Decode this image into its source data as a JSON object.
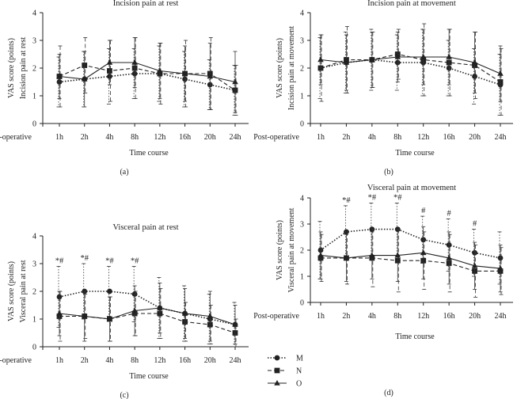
{
  "legend": {
    "entries": [
      {
        "key": "M",
        "label": "M",
        "marker": "circle",
        "dash": "dotted"
      },
      {
        "key": "N",
        "label": "N",
        "marker": "square",
        "dash": "dashed"
      },
      {
        "key": "O",
        "label": "O",
        "marker": "triangle",
        "dash": "solid"
      }
    ]
  },
  "chart_data": [
    {
      "type": "line",
      "panel": "(a)",
      "title": "Incision pain at rest",
      "ylabel": "VAS score (points)",
      "ylabel2": "Incision pain at rest",
      "xlabel": "Time course",
      "x_title_tick": "Post-operative",
      "categories": [
        "1h",
        "2h",
        "4h",
        "8h",
        "12h",
        "16h",
        "20h",
        "24h"
      ],
      "ylim": [
        0,
        4
      ],
      "yticks": [
        0,
        1,
        2,
        3,
        4
      ],
      "series": [
        {
          "name": "M",
          "values": [
            1.5,
            1.6,
            1.7,
            1.8,
            1.8,
            1.6,
            1.4,
            1.2
          ],
          "err": [
            0.9,
            1.0,
            1.0,
            0.9,
            1.0,
            1.0,
            0.9,
            0.9
          ]
        },
        {
          "name": "N",
          "values": [
            1.7,
            2.1,
            1.9,
            2.0,
            1.8,
            1.8,
            1.8,
            1.2
          ],
          "err": [
            1.1,
            1.0,
            1.1,
            1.1,
            1.1,
            1.2,
            1.3,
            0.9
          ]
        },
        {
          "name": "O",
          "values": [
            1.7,
            1.6,
            2.2,
            2.2,
            1.9,
            1.8,
            1.7,
            1.5
          ],
          "err": [
            0.8,
            1.0,
            0.8,
            0.9,
            1.0,
            1.0,
            1.2,
            1.1
          ]
        }
      ],
      "annotations": []
    },
    {
      "type": "line",
      "panel": "(b)",
      "title": "Incision pain at movement",
      "ylabel": "VAS score (points)",
      "ylabel2": "Incision pain at movement",
      "xlabel": "Time course",
      "x_title_tick": "Post-operative",
      "categories": [
        "1h",
        "2h",
        "4h",
        "8h",
        "12h",
        "16h",
        "20h",
        "24h"
      ],
      "ylim": [
        0,
        4
      ],
      "yticks": [
        0,
        1,
        2,
        3,
        4
      ],
      "series": [
        {
          "name": "M",
          "values": [
            2.0,
            2.2,
            2.3,
            2.2,
            2.2,
            2.0,
            1.7,
            1.4
          ],
          "err": [
            1.1,
            1.1,
            1.1,
            1.0,
            1.2,
            1.0,
            1.0,
            1.1
          ]
        },
        {
          "name": "N",
          "values": [
            2.0,
            2.3,
            2.3,
            2.5,
            2.3,
            2.2,
            2.1,
            1.5
          ],
          "err": [
            1.2,
            1.2,
            1.0,
            0.9,
            1.3,
            1.2,
            1.2,
            1.2
          ]
        },
        {
          "name": "O",
          "values": [
            2.3,
            2.2,
            2.3,
            2.4,
            2.4,
            2.4,
            2.2,
            1.8
          ],
          "err": [
            0.9,
            1.0,
            1.0,
            0.9,
            1.0,
            1.0,
            1.1,
            1.0
          ]
        }
      ],
      "annotations": []
    },
    {
      "type": "line",
      "panel": "(c)",
      "title": "Visceral pain at rest",
      "ylabel": "VAS score (points)",
      "ylabel2": "Visceral pain at rest",
      "xlabel": "Time course",
      "x_title_tick": "Post-operative",
      "categories": [
        "1h",
        "2h",
        "4h",
        "8h",
        "12h",
        "16h",
        "20h",
        "24h"
      ],
      "ylim": [
        0,
        4
      ],
      "yticks": [
        0,
        1,
        2,
        3,
        4
      ],
      "series": [
        {
          "name": "M",
          "values": [
            1.8,
            2.0,
            2.0,
            1.9,
            1.4,
            1.2,
            1.0,
            0.8
          ],
          "err": [
            1.1,
            1.0,
            0.9,
            1.0,
            1.1,
            1.0,
            0.9,
            0.8
          ]
        },
        {
          "name": "N",
          "values": [
            1.1,
            1.1,
            1.0,
            1.2,
            1.2,
            0.9,
            0.8,
            0.5
          ],
          "err": [
            0.9,
            0.8,
            0.8,
            0.8,
            0.9,
            0.7,
            0.7,
            0.5
          ]
        },
        {
          "name": "O",
          "values": [
            1.2,
            1.1,
            1.0,
            1.3,
            1.4,
            1.2,
            1.1,
            0.8
          ],
          "err": [
            0.8,
            0.9,
            0.8,
            0.9,
            0.9,
            0.9,
            0.9,
            0.7
          ]
        }
      ],
      "annotations": [
        {
          "category": "1h",
          "text": "*#"
        },
        {
          "category": "2h",
          "text": "*#"
        },
        {
          "category": "4h",
          "text": "*#"
        },
        {
          "category": "8h",
          "text": "*#"
        }
      ]
    },
    {
      "type": "line",
      "panel": "(d)",
      "title": "Visceral pain at movement",
      "ylabel": "VAS score (points)",
      "ylabel2": "Visceral pain at movement",
      "xlabel": "Time course",
      "x_title_tick": "Post-operative",
      "categories": [
        "1h",
        "2h",
        "4h",
        "8h",
        "12h",
        "16h",
        "20h",
        "24h"
      ],
      "ylim": [
        0,
        4
      ],
      "yticks": [
        0,
        1,
        2,
        3,
        4
      ],
      "series": [
        {
          "name": "M",
          "values": [
            2.0,
            2.7,
            2.8,
            2.8,
            2.4,
            2.2,
            1.9,
            1.7
          ],
          "err": [
            1.1,
            1.0,
            1.0,
            1.0,
            0.9,
            1.0,
            0.9,
            1.0
          ]
        },
        {
          "name": "N",
          "values": [
            1.7,
            1.7,
            1.7,
            1.6,
            1.6,
            1.5,
            1.2,
            1.2
          ],
          "err": [
            0.9,
            1.0,
            1.1,
            1.2,
            1.1,
            1.1,
            1.0,
            0.9
          ]
        },
        {
          "name": "O",
          "values": [
            1.8,
            1.7,
            1.8,
            1.8,
            1.9,
            1.7,
            1.4,
            1.3
          ],
          "err": [
            0.9,
            0.9,
            0.9,
            1.0,
            1.0,
            1.0,
            0.9,
            0.9
          ]
        }
      ],
      "annotations": [
        {
          "category": "2h",
          "text": "*#"
        },
        {
          "category": "4h",
          "text": "*#"
        },
        {
          "category": "8h",
          "text": "*#"
        },
        {
          "category": "12h",
          "text": "#"
        },
        {
          "category": "16h",
          "text": "#"
        },
        {
          "category": "20h",
          "text": "#"
        }
      ]
    }
  ]
}
